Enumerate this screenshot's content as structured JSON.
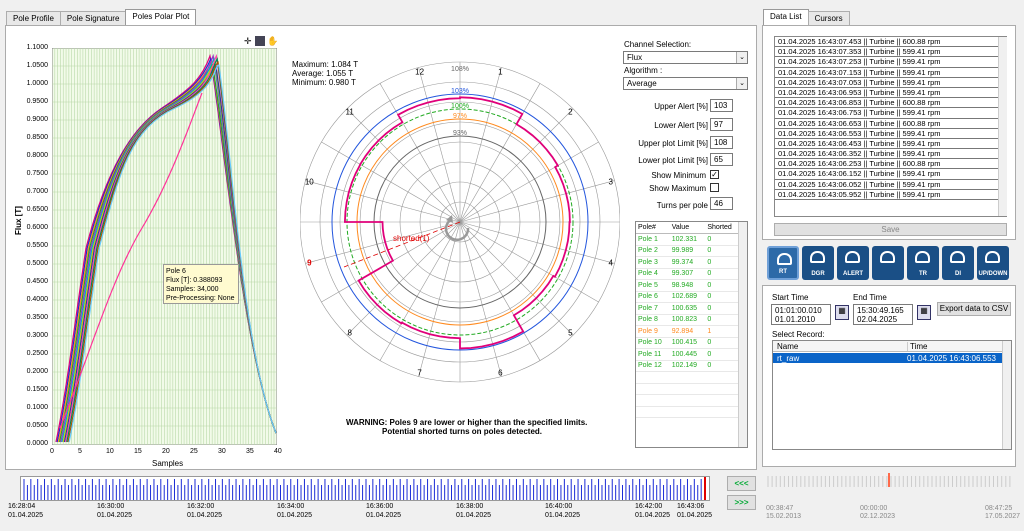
{
  "tabs": [
    {
      "label": "Pole Profile"
    },
    {
      "label": "Pole Signature"
    },
    {
      "label": "Poles Polar Plot"
    }
  ],
  "right_tabs": [
    {
      "label": "Data List"
    },
    {
      "label": "Cursors"
    }
  ],
  "profile": {
    "y_axis_label": "Flux [T]",
    "x_axis_label": "Samples",
    "yticks": [
      "1.1000",
      "1.0500",
      "1.0000",
      "0.9500",
      "0.9000",
      "0.8500",
      "0.8000",
      "0.7500",
      "0.7000",
      "0.6500",
      "0.6000",
      "0.5500",
      "0.5000",
      "0.4500",
      "0.4000",
      "0.3500",
      "0.3000",
      "0.2500",
      "0.2000",
      "0.1500",
      "0.1000",
      "0.0500",
      "0.0000"
    ],
    "xticks": [
      "0",
      "5",
      "10",
      "15",
      "20",
      "25",
      "30",
      "35",
      "40"
    ],
    "tooltip": {
      "l1": "Pole 6",
      "l2": "Flux [T]: 0.388093",
      "l3": "Samples: 34,000",
      "l4": "Pre-Processing: None"
    }
  },
  "stats": {
    "max": "Maximum: 1.084 T",
    "avg": "Average:    1.055 T",
    "min": "Minimum:   0.980 T"
  },
  "polar": {
    "pct": [
      "108%",
      "103%",
      "100%",
      "97%",
      "93%"
    ],
    "hours": [
      "12",
      "1",
      "2",
      "3",
      "4",
      "5",
      "6",
      "7",
      "8",
      "9",
      "10",
      "11"
    ],
    "shorted": "shorted(1)"
  },
  "warning": {
    "l1": "WARNING: Poles 9 are lower or higher than the specified limits.",
    "l2": "Potential shorted turns on poles detected."
  },
  "settings": {
    "channel_label": "Channel Selection:",
    "channel": "Flux",
    "algorithm_label": "Algorithm :",
    "algorithm": "Average",
    "upper_alert_label": "Upper Alert [%]",
    "upper_alert": "103",
    "lower_alert_label": "Lower Alert [%]",
    "lower_alert": "97",
    "upper_plot_label": "Upper plot Limit [%]",
    "upper_plot": "108",
    "lower_plot_label": "Lower plot Limit [%]",
    "lower_plot": "65",
    "show_min_label": "Show Minimum",
    "show_min": "✓",
    "show_max_label": "Show Maximum",
    "show_max": "",
    "turns_label": "Turns per pole",
    "turns": "46"
  },
  "pole_table": {
    "headers": [
      "Pole#",
      "Value",
      "Shorted"
    ],
    "rows": [
      [
        "Pole 1",
        "102.331",
        "0"
      ],
      [
        "Pole 2",
        "99.989",
        "0"
      ],
      [
        "Pole 3",
        "99.374",
        "0"
      ],
      [
        "Pole 4",
        "99.307",
        "0"
      ],
      [
        "Pole 5",
        "98.948",
        "0"
      ],
      [
        "Pole 6",
        "102.689",
        "0"
      ],
      [
        "Pole 7",
        "100.635",
        "0"
      ],
      [
        "Pole 8",
        "100.823",
        "0"
      ],
      [
        "Pole 9",
        "92.894",
        "1"
      ],
      [
        "Pole 10",
        "100.415",
        "0"
      ],
      [
        "Pole 11",
        "100.445",
        "0"
      ],
      [
        "Pole 12",
        "102.149",
        "0"
      ]
    ]
  },
  "data_list": [
    "01.04.2025 16:43:07.453 || Turbine || 600.88 rpm",
    "01.04.2025 16:43:07.353 || Turbine || 599.41 rpm",
    "01.04.2025 16:43:07.253 || Turbine || 599.41 rpm",
    "01.04.2025 16:43:07.153 || Turbine || 599.41 rpm",
    "01.04.2025 16:43:07.053 || Turbine || 599.41 rpm",
    "01.04.2025 16:43:06.953 || Turbine || 599.41 rpm",
    "01.04.2025 16:43:06.853 || Turbine || 600.88 rpm",
    "01.04.2025 16:43:06.753 || Turbine || 599.41 rpm",
    "01.04.2025 16:43:06.653 || Turbine || 600.88 rpm",
    "01.04.2025 16:43:06.553 || Turbine || 599.41 rpm",
    "01.04.2025 16:43:06.453 || Turbine || 599.41 rpm",
    "01.04.2025 16:43:06.352 || Turbine || 599.41 rpm",
    "01.04.2025 16:43:06.253 || Turbine || 600.88 rpm",
    "01.04.2025 16:43:06.152 || Turbine || 599.41 rpm",
    "01.04.2025 16:43:06.052 || Turbine || 599.41 rpm",
    "01.04.2025 16:43:05.952 || Turbine || 599.41 rpm"
  ],
  "save": "Save",
  "icons": [
    {
      "name": "rt-icon",
      "text": "RT"
    },
    {
      "name": "dgr-icon",
      "text": "DGR"
    },
    {
      "name": "alert-icon",
      "text": "ALERT"
    },
    {
      "name": "folder-icon",
      "text": ""
    },
    {
      "name": "tr-icon",
      "text": "TR"
    },
    {
      "name": "di-icon",
      "text": "DI"
    },
    {
      "name": "updown-icon",
      "text": "UP/DOWN"
    }
  ],
  "records": {
    "start_label": "Start Time",
    "start_time": "01:01:00.010",
    "start_date": "01.01.2010",
    "end_label": "End Time",
    "end_time": "15:30:49.165",
    "end_date": "02.04.2025",
    "export": "Export data to CSV",
    "select_label": "Select Record:",
    "col_name": "Name",
    "col_time": "Time",
    "row_name": "rt_raw",
    "row_time": "01.04.2025 16:43:06.553"
  },
  "mini_timeline": [
    {
      "t": "00:38:47",
      "d": "15.02.2013"
    },
    {
      "t": "00:00:00",
      "d": "02.12.2023"
    },
    {
      "t": "08:47:25",
      "d": "17.05.2027"
    }
  ],
  "timeline": {
    "labels": [
      {
        "t": "16:28:04",
        "d": "01.04.2025"
      },
      {
        "t": "16:30:00",
        "d": "01.04.2025"
      },
      {
        "t": "16:32:00",
        "d": "01.04.2025"
      },
      {
        "t": "16:34:00",
        "d": "01.04.2025"
      },
      {
        "t": "16:36:00",
        "d": "01.04.2025"
      },
      {
        "t": "16:38:00",
        "d": "01.04.2025"
      },
      {
        "t": "16:40:00",
        "d": "01.04.2025"
      },
      {
        "t": "16:42:00",
        "d": "01.04.2025"
      },
      {
        "t": "16:43:06",
        "d": "01.04.2025"
      }
    ],
    "back": "<<<",
    "fwd": ">>>"
  },
  "colors": {
    "pink": "#e0007a",
    "blue": "#2255dd",
    "orange": "#ff8a1e",
    "green": "#22aa22",
    "accent": "#0a64c8",
    "red": "#e00000"
  }
}
